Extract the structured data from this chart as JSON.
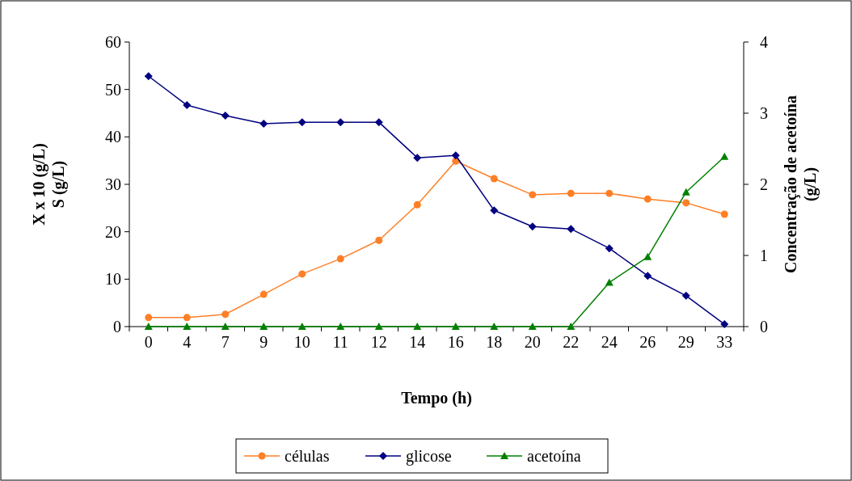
{
  "chart_data": {
    "type": "line",
    "xlabel": "Tempo (h)",
    "ylabel": "X x 10 (g/L)\nS (g/L)",
    "y2label": "Concentração de acetoína (g/L)",
    "categories": [
      "0",
      "4",
      "7",
      "9",
      "10",
      "11",
      "12",
      "14",
      "16",
      "18",
      "20",
      "22",
      "24",
      "26",
      "29",
      "33"
    ],
    "ylim": [
      0,
      60
    ],
    "yticks": [
      0,
      10,
      20,
      30,
      40,
      50,
      60
    ],
    "y2lim": [
      0,
      4
    ],
    "y2ticks": [
      0,
      1,
      2,
      3,
      4
    ],
    "grid": false,
    "legend": "bottom",
    "series": [
      {
        "name": "células",
        "color": "#ff7f27",
        "marker": "circle",
        "values": [
          1.9,
          1.9,
          2.6,
          6.8,
          11.1,
          14.3,
          18.2,
          25.7,
          34.9,
          31.2,
          27.8,
          28.1,
          28.1,
          26.9,
          26.1,
          23.7
        ]
      },
      {
        "name": "glicose",
        "color": "#000080",
        "marker": "diamond",
        "values": [
          52.8,
          46.7,
          44.5,
          42.8,
          43.1,
          43.1,
          43.1,
          35.6,
          36.1,
          24.5,
          21.1,
          20.6,
          16.5,
          10.7,
          6.5,
          0.5
        ]
      },
      {
        "name": "acetoína",
        "color": "#008000",
        "marker": "triangle",
        "axis": "y2",
        "values": [
          0,
          0,
          0,
          0,
          0,
          0,
          0,
          0,
          0,
          0,
          0,
          0,
          0.62,
          0.98,
          1.89,
          2.39
        ]
      }
    ]
  }
}
